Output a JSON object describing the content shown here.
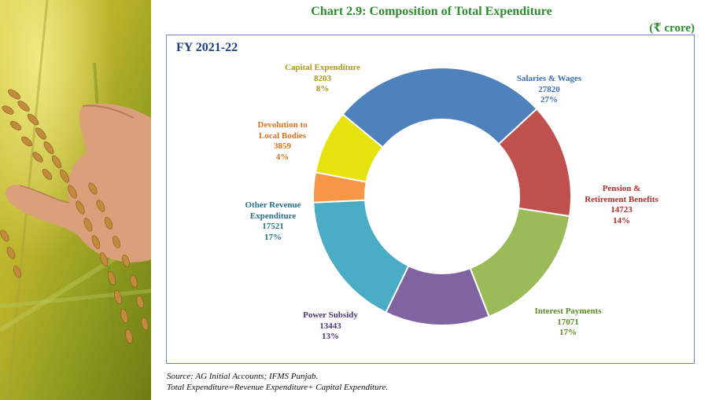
{
  "header": {
    "title": "Chart 2.9: Composition of Total Expenditure",
    "unit": "(₹ crore)"
  },
  "chart_data": {
    "type": "pie",
    "variant": "donut",
    "title": "Chart 2.9: Composition of Total Expenditure",
    "subtitle": "FY 2021-22",
    "unit": "₹ crore",
    "slices": [
      {
        "label": "Salaries & Wages",
        "value": 27820,
        "percent": "27%",
        "color": "#4f81bd",
        "label_color": "#3a6fb5"
      },
      {
        "label": "Pension & Retirement Benefits",
        "value": 14723,
        "percent": "14%",
        "color": "#c0504d",
        "label_color": "#b22d2d"
      },
      {
        "label": "Interest Payments",
        "value": 17071,
        "percent": "17%",
        "color": "#9bbb59",
        "label_color": "#5a8a23"
      },
      {
        "label": "Power Subsidy",
        "value": 13443,
        "percent": "13%",
        "color": "#8064a2",
        "label_color": "#4a3877"
      },
      {
        "label": "Other Revenue Expenditure",
        "value": 17521,
        "percent": "17%",
        "color": "#4bacc6",
        "label_color": "#27718e"
      },
      {
        "label": "Devolution to Local Bodies",
        "value": 3859,
        "percent": "4%",
        "color": "#f79646",
        "label_color": "#e0701a"
      },
      {
        "label": "Capital Expenditure",
        "value": 8203,
        "percent": "8%",
        "color": "#e6e20e",
        "label_color": "#a89c10"
      }
    ]
  },
  "labels": {
    "salaries": {
      "name": "Salaries & Wages",
      "value": "27820",
      "pct": "27%"
    },
    "pension": {
      "line1": "Pension &",
      "line2": "Retirement Benefits",
      "value": "14723",
      "pct": "14%"
    },
    "interest": {
      "name": "Interest Payments",
      "value": "17071",
      "pct": "17%"
    },
    "power": {
      "name": "Power Subsidy",
      "value": "13443",
      "pct": "13%"
    },
    "other": {
      "line1": "Other Revenue",
      "line2": "Expenditure",
      "value": "17521",
      "pct": "17%"
    },
    "devolution": {
      "line1": "Devolution to",
      "line2": "Local Bodies",
      "value": "3859",
      "pct": "4%"
    },
    "capital": {
      "name": "Capital Expenditure",
      "value": "8203",
      "pct": "8%"
    }
  },
  "footer": {
    "source": "Source: AG Initial Accounts; IFMS Punjab.",
    "note": "Total Expenditure=Revenue Expenditure+ Capital Expenditure."
  }
}
